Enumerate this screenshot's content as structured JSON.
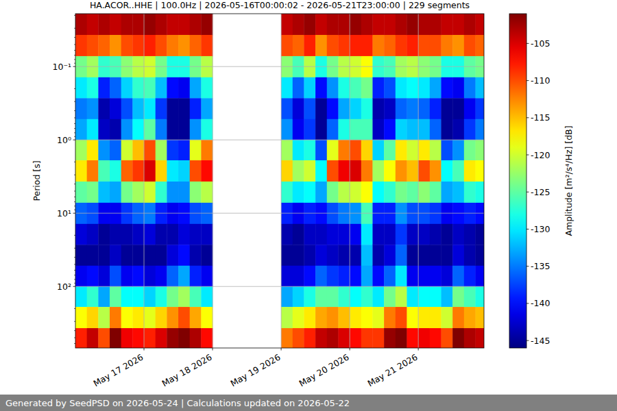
{
  "chart_data": {
    "type": "heatmap",
    "title": "HA.ACOR..HHE | 100.0Hz | 2026-05-16T00:00:02 - 2026-05-21T23:00:00 | 229 segments",
    "y_label": "Period [s]",
    "footer": "Generated by SeedPSD on 2026-05-24 | Calculations updated on 2026-05-22",
    "log": "y",
    "grid": true,
    "xlim": [
      "2026-05-16T00:00",
      "2026-05-21T23:00"
    ],
    "xticks": [
      {
        "value": "2026-05-17T00:00",
        "label": "May 17 2026"
      },
      {
        "value": "2026-05-18T00:00",
        "label": "May 18 2026"
      },
      {
        "value": "2026-05-19T00:00",
        "label": "May 19 2026"
      },
      {
        "value": "2026-05-20T00:00",
        "label": "May 20 2026"
      },
      {
        "value": "2026-05-21T00:00",
        "label": "May 21 2026"
      }
    ],
    "ylim": [
      0.019,
      690
    ],
    "yticks": [
      {
        "value": 0.1,
        "label": "10⁻¹"
      },
      {
        "value": 1,
        "label": "10⁰"
      },
      {
        "value": 10,
        "label": "10¹"
      },
      {
        "value": 100,
        "label": "10²"
      }
    ],
    "x_bins": [
      "2026-05-16T00:00",
      "2026-05-16T04:00",
      "2026-05-16T08:00",
      "2026-05-16T12:00",
      "2026-05-16T16:00",
      "2026-05-16T20:00",
      "2026-05-17T00:00",
      "2026-05-17T04:00",
      "2026-05-17T08:00",
      "2026-05-17T12:00",
      "2026-05-17T16:00",
      "2026-05-17T20:00",
      "2026-05-18T00:00",
      "2026-05-18T04:00",
      "2026-05-18T08:00",
      "2026-05-18T12:00",
      "2026-05-18T16:00",
      "2026-05-18T20:00",
      "2026-05-19T00:00",
      "2026-05-19T04:00",
      "2026-05-19T08:00",
      "2026-05-19T12:00",
      "2026-05-19T16:00",
      "2026-05-19T20:00",
      "2026-05-20T00:00",
      "2026-05-20T04:00",
      "2026-05-20T08:00",
      "2026-05-20T12:00",
      "2026-05-20T16:00",
      "2026-05-20T20:00",
      "2026-05-21T00:00",
      "2026-05-21T04:00",
      "2026-05-21T08:00",
      "2026-05-21T12:00",
      "2026-05-21T16:00",
      "2026-05-21T20:00",
      "2026-05-21T23:00"
    ],
    "y_bins": [
      0.019,
      0.037,
      0.072,
      0.14,
      0.27,
      0.52,
      1.0,
      1.9,
      3.7,
      7.2,
      14,
      27,
      52,
      100,
      190,
      370,
      690
    ],
    "cells": [
      [
        -103,
        -109,
        -124,
        -130,
        -135,
        -133,
        -122,
        -117,
        -125,
        -136,
        -142,
        -145,
        -141,
        -130,
        -118,
        -108
      ],
      [
        -104,
        -110,
        -122,
        -128,
        -134,
        -130,
        -117,
        -112,
        -124,
        -137,
        -143,
        -145,
        -140,
        -127,
        -116,
        -104
      ],
      [
        -103,
        -111,
        -127,
        -139,
        -144,
        -143,
        -134,
        -126,
        -132,
        -141,
        -145,
        -145,
        -142,
        -133,
        -121,
        -110
      ],
      [
        -104,
        -113,
        -126,
        -136,
        -142,
        -144,
        -136,
        -128,
        -133,
        -141,
        -144,
        -143,
        -137,
        -125,
        -112,
        -101
      ],
      [
        -103,
        -110,
        -123,
        -131,
        -137,
        -134,
        -120,
        -111,
        -124,
        -138,
        -144,
        -145,
        -141,
        -129,
        -118,
        -106
      ],
      [
        -103,
        -109,
        -121,
        -127,
        -132,
        -129,
        -115,
        -109,
        -122,
        -136,
        -143,
        -145,
        -140,
        -129,
        -117,
        -107
      ],
      [
        -102,
        -108,
        -120,
        -126,
        -130,
        -125,
        -110,
        -105,
        -120,
        -135,
        -142,
        -145,
        -142,
        -131,
        -119,
        -108
      ],
      [
        -103,
        -110,
        -124,
        -132,
        -138,
        -135,
        -122,
        -116,
        -127,
        -139,
        -144,
        -145,
        -141,
        -128,
        -116,
        -105
      ],
      [
        -104,
        -112,
        -128,
        -140,
        -145,
        -145,
        -138,
        -130,
        -134,
        -141,
        -144,
        -142,
        -136,
        -124,
        -113,
        -102
      ],
      [
        -104,
        -113,
        -128,
        -141,
        -145,
        -145,
        -139,
        -131,
        -134,
        -140,
        -142,
        -140,
        -133,
        -122,
        -110,
        -101
      ],
      [
        -103,
        -111,
        -124,
        -133,
        -139,
        -134,
        -119,
        -110,
        -123,
        -137,
        -143,
        -144,
        -139,
        -126,
        -114,
        -103
      ],
      [
        -102,
        -109,
        -121,
        -128,
        -133,
        -128,
        -112,
        -107,
        -121,
        -136,
        -143,
        -145,
        -141,
        -130,
        -118,
        -107
      ],
      null,
      null,
      null,
      null,
      null,
      null,
      [
        -104,
        -110,
        -123,
        -130,
        -137,
        -134,
        -122,
        -116,
        -127,
        -139,
        -144,
        -145,
        -142,
        -133,
        -121,
        -112
      ],
      [
        -103,
        -111,
        -126,
        -136,
        -142,
        -141,
        -130,
        -122,
        -130,
        -141,
        -145,
        -145,
        -142,
        -131,
        -119,
        -110
      ],
      [
        -102,
        -108,
        -121,
        -131,
        -137,
        -138,
        -128,
        -120,
        -129,
        -139,
        -143,
        -144,
        -140,
        -128,
        -117,
        -108
      ],
      [
        -104,
        -113,
        -128,
        -140,
        -145,
        -145,
        -137,
        -129,
        -133,
        -140,
        -143,
        -142,
        -136,
        -125,
        -114,
        -104
      ],
      [
        -103,
        -110,
        -124,
        -134,
        -140,
        -136,
        -119,
        -110,
        -124,
        -137,
        -142,
        -143,
        -138,
        -125,
        -113,
        -103
      ],
      [
        -103,
        -109,
        -121,
        -128,
        -133,
        -128,
        -112,
        -106,
        -121,
        -135,
        -142,
        -144,
        -139,
        -127,
        -115,
        -105
      ],
      [
        -102,
        -108,
        -120,
        -126,
        -131,
        -126,
        -110,
        -105,
        -120,
        -134,
        -141,
        -144,
        -140,
        -129,
        -117,
        -107
      ],
      [
        -103,
        -108,
        -118,
        -124,
        -128,
        -126,
        -116,
        -112,
        -118,
        -126,
        -130,
        -132,
        -133,
        -127,
        -118,
        -109
      ],
      [
        -104,
        -112,
        -127,
        -139,
        -144,
        -143,
        -131,
        -122,
        -129,
        -139,
        -143,
        -144,
        -140,
        -130,
        -119,
        -109
      ],
      [
        -104,
        -111,
        -126,
        -137,
        -143,
        -140,
        -125,
        -118,
        -127,
        -139,
        -143,
        -142,
        -136,
        -124,
        -112,
        -102
      ],
      [
        -103,
        -109,
        -122,
        -130,
        -136,
        -131,
        -117,
        -113,
        -124,
        -134,
        -138,
        -136,
        -130,
        -121,
        -110,
        -101
      ],
      [
        -102,
        -108,
        -121,
        -129,
        -135,
        -132,
        -120,
        -115,
        -125,
        -137,
        -143,
        -145,
        -141,
        -130,
        -118,
        -107
      ],
      [
        -103,
        -110,
        -123,
        -130,
        -136,
        -132,
        -117,
        -110,
        -123,
        -137,
        -143,
        -145,
        -141,
        -129,
        -117,
        -106
      ],
      [
        -103,
        -110,
        -124,
        -133,
        -139,
        -136,
        -121,
        -113,
        -125,
        -138,
        -144,
        -145,
        -141,
        -129,
        -117,
        -107
      ],
      [
        -104,
        -112,
        -128,
        -140,
        -145,
        -145,
        -137,
        -129,
        -133,
        -141,
        -145,
        -145,
        -142,
        -132,
        -120,
        -110
      ],
      [
        -104,
        -113,
        -128,
        -141,
        -145,
        -144,
        -134,
        -126,
        -132,
        -140,
        -143,
        -142,
        -136,
        -124,
        -112,
        -101
      ],
      [
        -103,
        -110,
        -125,
        -135,
        -141,
        -138,
        -124,
        -117,
        -127,
        -139,
        -144,
        -144,
        -139,
        -126,
        -114,
        -103
      ],
      [
        -104,
        -111,
        -124,
        -132,
        -138,
        -135,
        -123,
        -118,
        -128,
        -140,
        -145,
        -145,
        -141,
        -128,
        -115,
        -104
      ]
    ],
    "colorbar": {
      "label": "Amplitude [m²/s⁴/Hz] [dB]",
      "range": [
        -146,
        -101
      ],
      "ticks": [
        -145,
        -140,
        -135,
        -130,
        -125,
        -120,
        -115,
        -110,
        -105
      ]
    }
  }
}
